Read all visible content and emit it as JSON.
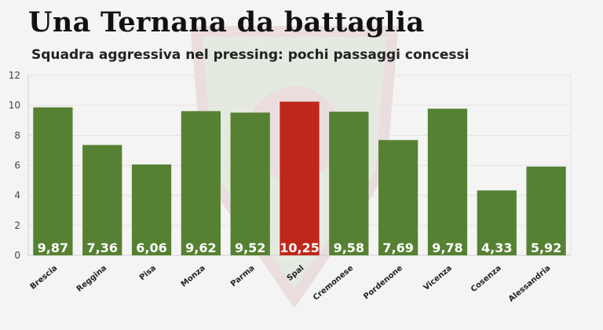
{
  "header": {
    "title": "Una Ternana da battaglia",
    "subtitle": "Squadra aggressiva nel pressing: pochi passaggi concessi"
  },
  "colors": {
    "bar": "#568133",
    "highlight": "#c0271b",
    "grid": "#e2e2e2",
    "axis": "#cfcfcf"
  },
  "chart_data": {
    "type": "bar",
    "title": "Una Ternana da battaglia",
    "subtitle": "Squadra aggressiva nel pressing: pochi passaggi concessi",
    "categories": [
      "Brescia",
      "Reggina",
      "Pisa",
      "Monza",
      "Parma",
      "Spal",
      "Cremonese",
      "Pordenone",
      "Vicenza",
      "Cosenza",
      "Alessandria"
    ],
    "values": [
      9.87,
      7.36,
      6.06,
      9.62,
      9.52,
      10.25,
      9.58,
      7.69,
      9.78,
      4.33,
      5.92
    ],
    "value_labels": [
      "9,87",
      "7,36",
      "6,06",
      "9,62",
      "9,52",
      "10,25",
      "9,58",
      "7,69",
      "9,78",
      "4,33",
      "5,92"
    ],
    "highlight": "Spal",
    "ylim": [
      0,
      12
    ],
    "yticks": [
      0,
      2,
      4,
      6,
      8,
      10,
      12
    ],
    "grid": true,
    "legend": "none"
  }
}
